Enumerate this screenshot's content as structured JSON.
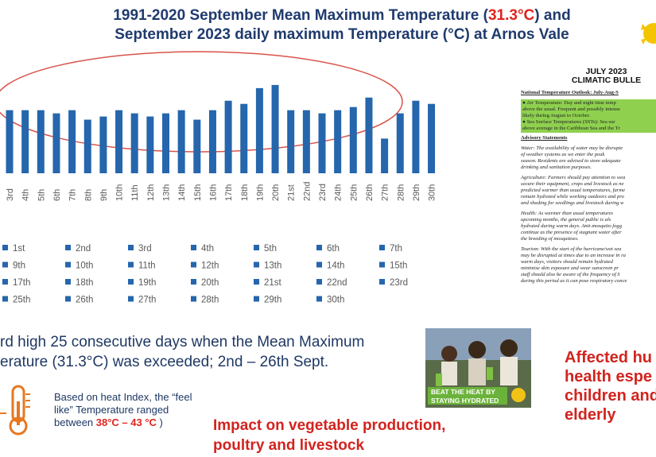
{
  "slide": {
    "title_pre": "1991-2020 September Mean Maximum Temperature (",
    "title_highlight": "31.3°C",
    "title_post": ") and",
    "title_line2": "September 2023 daily maximum Temperature (°C) at Arnos Vale"
  },
  "chart_data": {
    "type": "bar",
    "categories": [
      "3rd",
      "4th",
      "5th",
      "6th",
      "7th",
      "8th",
      "9th",
      "10th",
      "11th",
      "12th",
      "13th",
      "14th",
      "15th",
      "16th",
      "17th",
      "18th",
      "19th",
      "20th",
      "21st",
      "22nd",
      "23rd",
      "24th",
      "25th",
      "26th",
      "27th",
      "28th",
      "29th",
      "30th"
    ],
    "values": [
      31.7,
      31.7,
      31.7,
      31.6,
      31.7,
      31.4,
      31.5,
      31.7,
      31.6,
      31.5,
      31.6,
      31.7,
      31.4,
      31.7,
      32.0,
      31.9,
      32.4,
      32.5,
      31.7,
      31.7,
      31.6,
      31.7,
      31.8,
      32.1,
      30.8,
      31.6,
      32.0,
      31.9
    ],
    "color": "#2566ad",
    "ylim": [
      29.7,
      32.8
    ]
  },
  "legend": [
    "1st",
    "2nd",
    "3rd",
    "4th",
    "5th",
    "6th",
    "7th",
    "9th",
    "10th",
    "11th",
    "12th",
    "13th",
    "14th",
    "15th",
    "17th",
    "18th",
    "19th",
    "20th",
    "21st",
    "22nd",
    "23rd",
    "25th",
    "26th",
    "27th",
    "28th",
    "29th",
    "30th"
  ],
  "record": {
    "line1": "rd high 25 consecutive days when the Mean Maximum",
    "line2": "erature (31.3°C) was exceeded; 2nd – 26th Sept."
  },
  "heat_index": {
    "line1": "Based on heat Index, the “feel",
    "line2": "like” Temperature ranged",
    "line3_pre": "between ",
    "highlight": "38°C – 43 °C",
    "line3_post": " )"
  },
  "impact": {
    "line1": "Impact on vegetable production,",
    "line2": "poultry and livestock"
  },
  "affected": [
    "Affected hu",
    "health espe",
    "children and",
    "elderly"
  ],
  "poster": {
    "line1": "BEAT THE HEAT BY",
    "line2": "STAYING HYDRATED"
  },
  "bulletin": {
    "heading1": "JULY 2023",
    "heading2": "CLIMATIC BULLE",
    "outlook_title": "National Temperature Outlook: July-Aug-S",
    "outlook": [
      "● Air Temperature: Day and night time temp",
      "above the usual. Frequent and possibly intense",
      "likely during August to October.",
      "● Sea Surface Temperatures (SSTs): Sea sur",
      "above average in the Caribbean Sea and the Tr"
    ],
    "advisory_title": "Advisory Statements",
    "sections": [
      [
        "Water: The availability of water may be disrupte",
        "of weather systems as we enter the peak",
        "season. Residents are advised to store adequate",
        "drinking and sanitation purposes."
      ],
      [
        "Agriculture: Farmers should pay attention to wea",
        "secure their equipment, crops and livestock as ne",
        "predicted warmer than usual temperatures, farme",
        "remain hydrated while working outdoors and pro",
        "and shading for seedlings and livestock during w"
      ],
      [
        "Health: As warmer than usual temperatures",
        "upcoming months, the general public is als",
        "hydrated during warm days. Anti-mosquito fogg",
        "continue as the presence of stagnant water after",
        "the breeding of mosquitoes."
      ],
      [
        "Tourism: With the start of the hurricane/wet sea",
        "may be disrupted at times due to an increase in ra",
        "warm days, visitors should remain hydrated",
        "minimise skin exposure and wear sunscreen pr",
        "staff should also be aware of the frequency of S",
        "during this period as it can pose respiratory conce"
      ]
    ]
  }
}
